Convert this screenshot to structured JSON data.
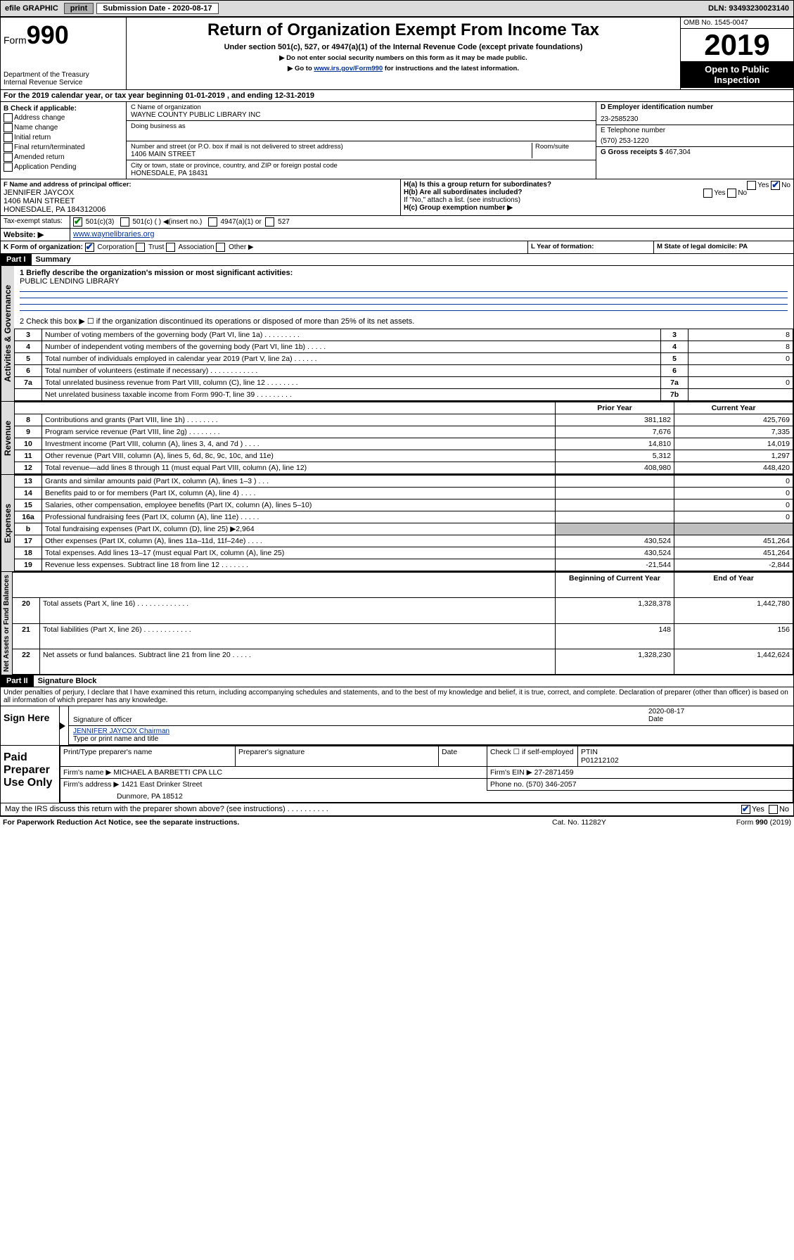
{
  "topbar": {
    "efile": "efile GRAPHIC",
    "print": "print",
    "subdate_label": "Submission Date - 2020-08-17",
    "dln": "DLN: 93493230023140"
  },
  "header": {
    "form_label": "Form",
    "form_num": "990",
    "title": "Return of Organization Exempt From Income Tax",
    "sub1": "Under section 501(c), 527, or 4947(a)(1) of the Internal Revenue Code (except private foundations)",
    "sub2": "▶ Do not enter social security numbers on this form as it may be made public.",
    "sub3_pre": "▶ Go to ",
    "sub3_link": "www.irs.gov/Form990",
    "sub3_post": " for instructions and the latest information.",
    "dept": "Department of the Treasury\nInternal Revenue Service",
    "omb": "OMB No. 1545-0047",
    "year": "2019",
    "open": "Open to Public Inspection"
  },
  "lineA": "For the 2019 calendar year, or tax year beginning 01-01-2019    , and ending 12-31-2019",
  "boxB": {
    "label": "B Check if applicable:",
    "opts": [
      "Address change",
      "Name change",
      "Initial return",
      "Final return/terminated",
      "Amended return",
      "Application Pending"
    ]
  },
  "boxC": {
    "c_label": "C Name of organization",
    "c_name": "WAYNE COUNTY PUBLIC LIBRARY INC",
    "dba": "Doing business as",
    "addr_label": "Number and street (or P.O. box if mail is not delivered to street address)",
    "room": "Room/suite",
    "addr": "1406 MAIN STREET",
    "city_label": "City or town, state or province, country, and ZIP or foreign postal code",
    "city": "HONESDALE, PA  18431"
  },
  "boxD": {
    "label": "D Employer identification number",
    "val": "23-2585230"
  },
  "boxE": {
    "label": "E Telephone number",
    "val": "(570) 253-1220"
  },
  "boxG": {
    "label": "G Gross receipts $",
    "val": "467,304"
  },
  "boxF": {
    "label": "F  Name and address of principal officer:",
    "name": "JENNIFER JAYCOX",
    "addr1": "1406 MAIN STREET",
    "addr2": "HONESDALE, PA  184312006"
  },
  "boxH": {
    "a": "H(a)  Is this a group return for subordinates?",
    "b": "H(b)  Are all subordinates included?",
    "b2": "If \"No,\" attach a list. (see instructions)",
    "c": "H(c)  Group exemption number ▶"
  },
  "boxI": {
    "label": "Tax-exempt status:",
    "o1": "501(c)(3)",
    "o2": "501(c) (   ) ◀(insert no.)",
    "o3": "4947(a)(1) or",
    "o4": "527"
  },
  "boxJ": {
    "label": "Website: ▶",
    "val": "www.waynelibraries.org"
  },
  "boxK": {
    "label": "K Form of organization:",
    "o1": "Corporation",
    "o2": "Trust",
    "o3": "Association",
    "o4": "Other ▶"
  },
  "boxL": {
    "label": "L Year of formation:"
  },
  "boxM": {
    "label": "M State of legal domicile: PA"
  },
  "part1": {
    "hdr": "Part I",
    "title": "Summary",
    "l1_label": "1  Briefly describe the organization's mission or most significant activities:",
    "l1_val": "PUBLIC LENDING LIBRARY",
    "l2": "2    Check this box ▶ ☐  if the organization discontinued its operations or disposed of more than 25% of its net assets.",
    "rows_gov": [
      {
        "n": "3",
        "t": "Number of voting members of the governing body (Part VI, line 1a)   .    .    .    .    .    .    .    .    .",
        "rn": "3",
        "v": "8"
      },
      {
        "n": "4",
        "t": "Number of independent voting members of the governing body (Part VI, line 1b)   .    .    .    .    .",
        "rn": "4",
        "v": "8"
      },
      {
        "n": "5",
        "t": "Total number of individuals employed in calendar year 2019 (Part V, line 2a)   .    .    .    .    .    .",
        "rn": "5",
        "v": "0"
      },
      {
        "n": "6",
        "t": "Total number of volunteers (estimate if necessary)   .    .    .    .    .    .    .    .    .    .    .    .",
        "rn": "6",
        "v": ""
      },
      {
        "n": "7a",
        "t": "Total unrelated business revenue from Part VIII, column (C), line 12   .    .    .    .    .    .    .    .",
        "rn": "7a",
        "v": "0"
      },
      {
        "n": "",
        "t": "Net unrelated business taxable income from Form 990-T, line 39   .    .    .    .    .    .    .    .    .",
        "rn": "7b",
        "v": ""
      }
    ],
    "col_prior": "Prior Year",
    "col_curr": "Current Year",
    "rows_rev": [
      {
        "n": "8",
        "t": "Contributions and grants (Part VIII, line 1h)   .    .    .    .    .    .    .    .",
        "p": "381,182",
        "c": "425,769"
      },
      {
        "n": "9",
        "t": "Program service revenue (Part VIII, line 2g)   .    .    .    .    .    .    .    .",
        "p": "7,676",
        "c": "7,335"
      },
      {
        "n": "10",
        "t": "Investment income (Part VIII, column (A), lines 3, 4, and 7d )   .    .    .    .",
        "p": "14,810",
        "c": "14,019"
      },
      {
        "n": "11",
        "t": "Other revenue (Part VIII, column (A), lines 5, 6d, 8c, 9c, 10c, and 11e)",
        "p": "5,312",
        "c": "1,297"
      },
      {
        "n": "12",
        "t": "Total revenue—add lines 8 through 11 (must equal Part VIII, column (A), line 12)",
        "p": "408,980",
        "c": "448,420"
      }
    ],
    "rows_exp": [
      {
        "n": "13",
        "t": "Grants and similar amounts paid (Part IX, column (A), lines 1–3 )   .    .    .",
        "p": "",
        "c": "0"
      },
      {
        "n": "14",
        "t": "Benefits paid to or for members (Part IX, column (A), line 4)   .    .    .    .",
        "p": "",
        "c": "0"
      },
      {
        "n": "15",
        "t": "Salaries, other compensation, employee benefits (Part IX, column (A), lines 5–10)",
        "p": "",
        "c": "0"
      },
      {
        "n": "16a",
        "t": "Professional fundraising fees (Part IX, column (A), line 11e)   .    .    .    .    .",
        "p": "",
        "c": "0"
      },
      {
        "n": "b",
        "t": "Total fundraising expenses (Part IX, column (D), line 25) ▶2,964",
        "p": "GREY",
        "c": "GREY"
      },
      {
        "n": "17",
        "t": "Other expenses (Part IX, column (A), lines 11a–11d, 11f–24e)   .    .    .    .",
        "p": "430,524",
        "c": "451,264"
      },
      {
        "n": "18",
        "t": "Total expenses. Add lines 13–17 (must equal Part IX, column (A), line 25)",
        "p": "430,524",
        "c": "451,264"
      },
      {
        "n": "19",
        "t": "Revenue less expenses. Subtract line 18 from line 12   .    .    .    .    .    .    .",
        "p": "-21,544",
        "c": "-2,844"
      }
    ],
    "col_beg": "Beginning of Current Year",
    "col_end": "End of Year",
    "rows_net": [
      {
        "n": "20",
        "t": "Total assets (Part X, line 16)   .    .    .    .    .    .    .    .    .    .    .    .    .",
        "p": "1,328,378",
        "c": "1,442,780"
      },
      {
        "n": "21",
        "t": "Total liabilities (Part X, line 26)   .    .    .    .    .    .    .    .    .    .    .    .",
        "p": "148",
        "c": "156"
      },
      {
        "n": "22",
        "t": "Net assets or fund balances. Subtract line 21 from line 20   .    .    .    .    .",
        "p": "1,328,230",
        "c": "1,442,624"
      }
    ],
    "vtabs": {
      "gov": "Activities & Governance",
      "rev": "Revenue",
      "exp": "Expenses",
      "net": "Net Assets or Fund Balances"
    }
  },
  "part2": {
    "hdr": "Part II",
    "title": "Signature Block",
    "perjury": "Under penalties of perjury, I declare that I have examined this return, including accompanying schedules and statements, and to the best of my knowledge and belief, it is true, correct, and complete. Declaration of preparer (other than officer) is based on all information of which preparer has any knowledge.",
    "sign_here": "Sign Here",
    "sig_officer": "Signature of officer",
    "sig_date": "2020-08-17",
    "sig_date_lbl": "Date",
    "sig_name": "JENNIFER JAYCOX Chairman",
    "sig_name_lbl": "Type or print name and title",
    "paid": "Paid Preparer Use Only",
    "pp_name_lbl": "Print/Type preparer's name",
    "pp_sig_lbl": "Preparer's signature",
    "pp_date_lbl": "Date",
    "pp_check": "Check ☐ if self-employed",
    "pp_ptin_lbl": "PTIN",
    "pp_ptin": "P01212102",
    "firm_name_lbl": "Firm's name    ▶",
    "firm_name": "MICHAEL A BARBETTI CPA LLC",
    "firm_ein_lbl": "Firm's EIN ▶",
    "firm_ein": "27-2871459",
    "firm_addr_lbl": "Firm's address ▶",
    "firm_addr1": "1421 East Drinker Street",
    "firm_addr2": "Dunmore, PA  18512",
    "firm_phone_lbl": "Phone no.",
    "firm_phone": "(570) 346-2057",
    "discuss": "May the IRS discuss this return with the preparer shown above? (see instructions)    .    .    .    .    .    .    .    .    .    ."
  },
  "footer": {
    "pra": "For Paperwork Reduction Act Notice, see the separate instructions.",
    "cat": "Cat. No. 11282Y",
    "form": "Form 990 (2019)"
  }
}
